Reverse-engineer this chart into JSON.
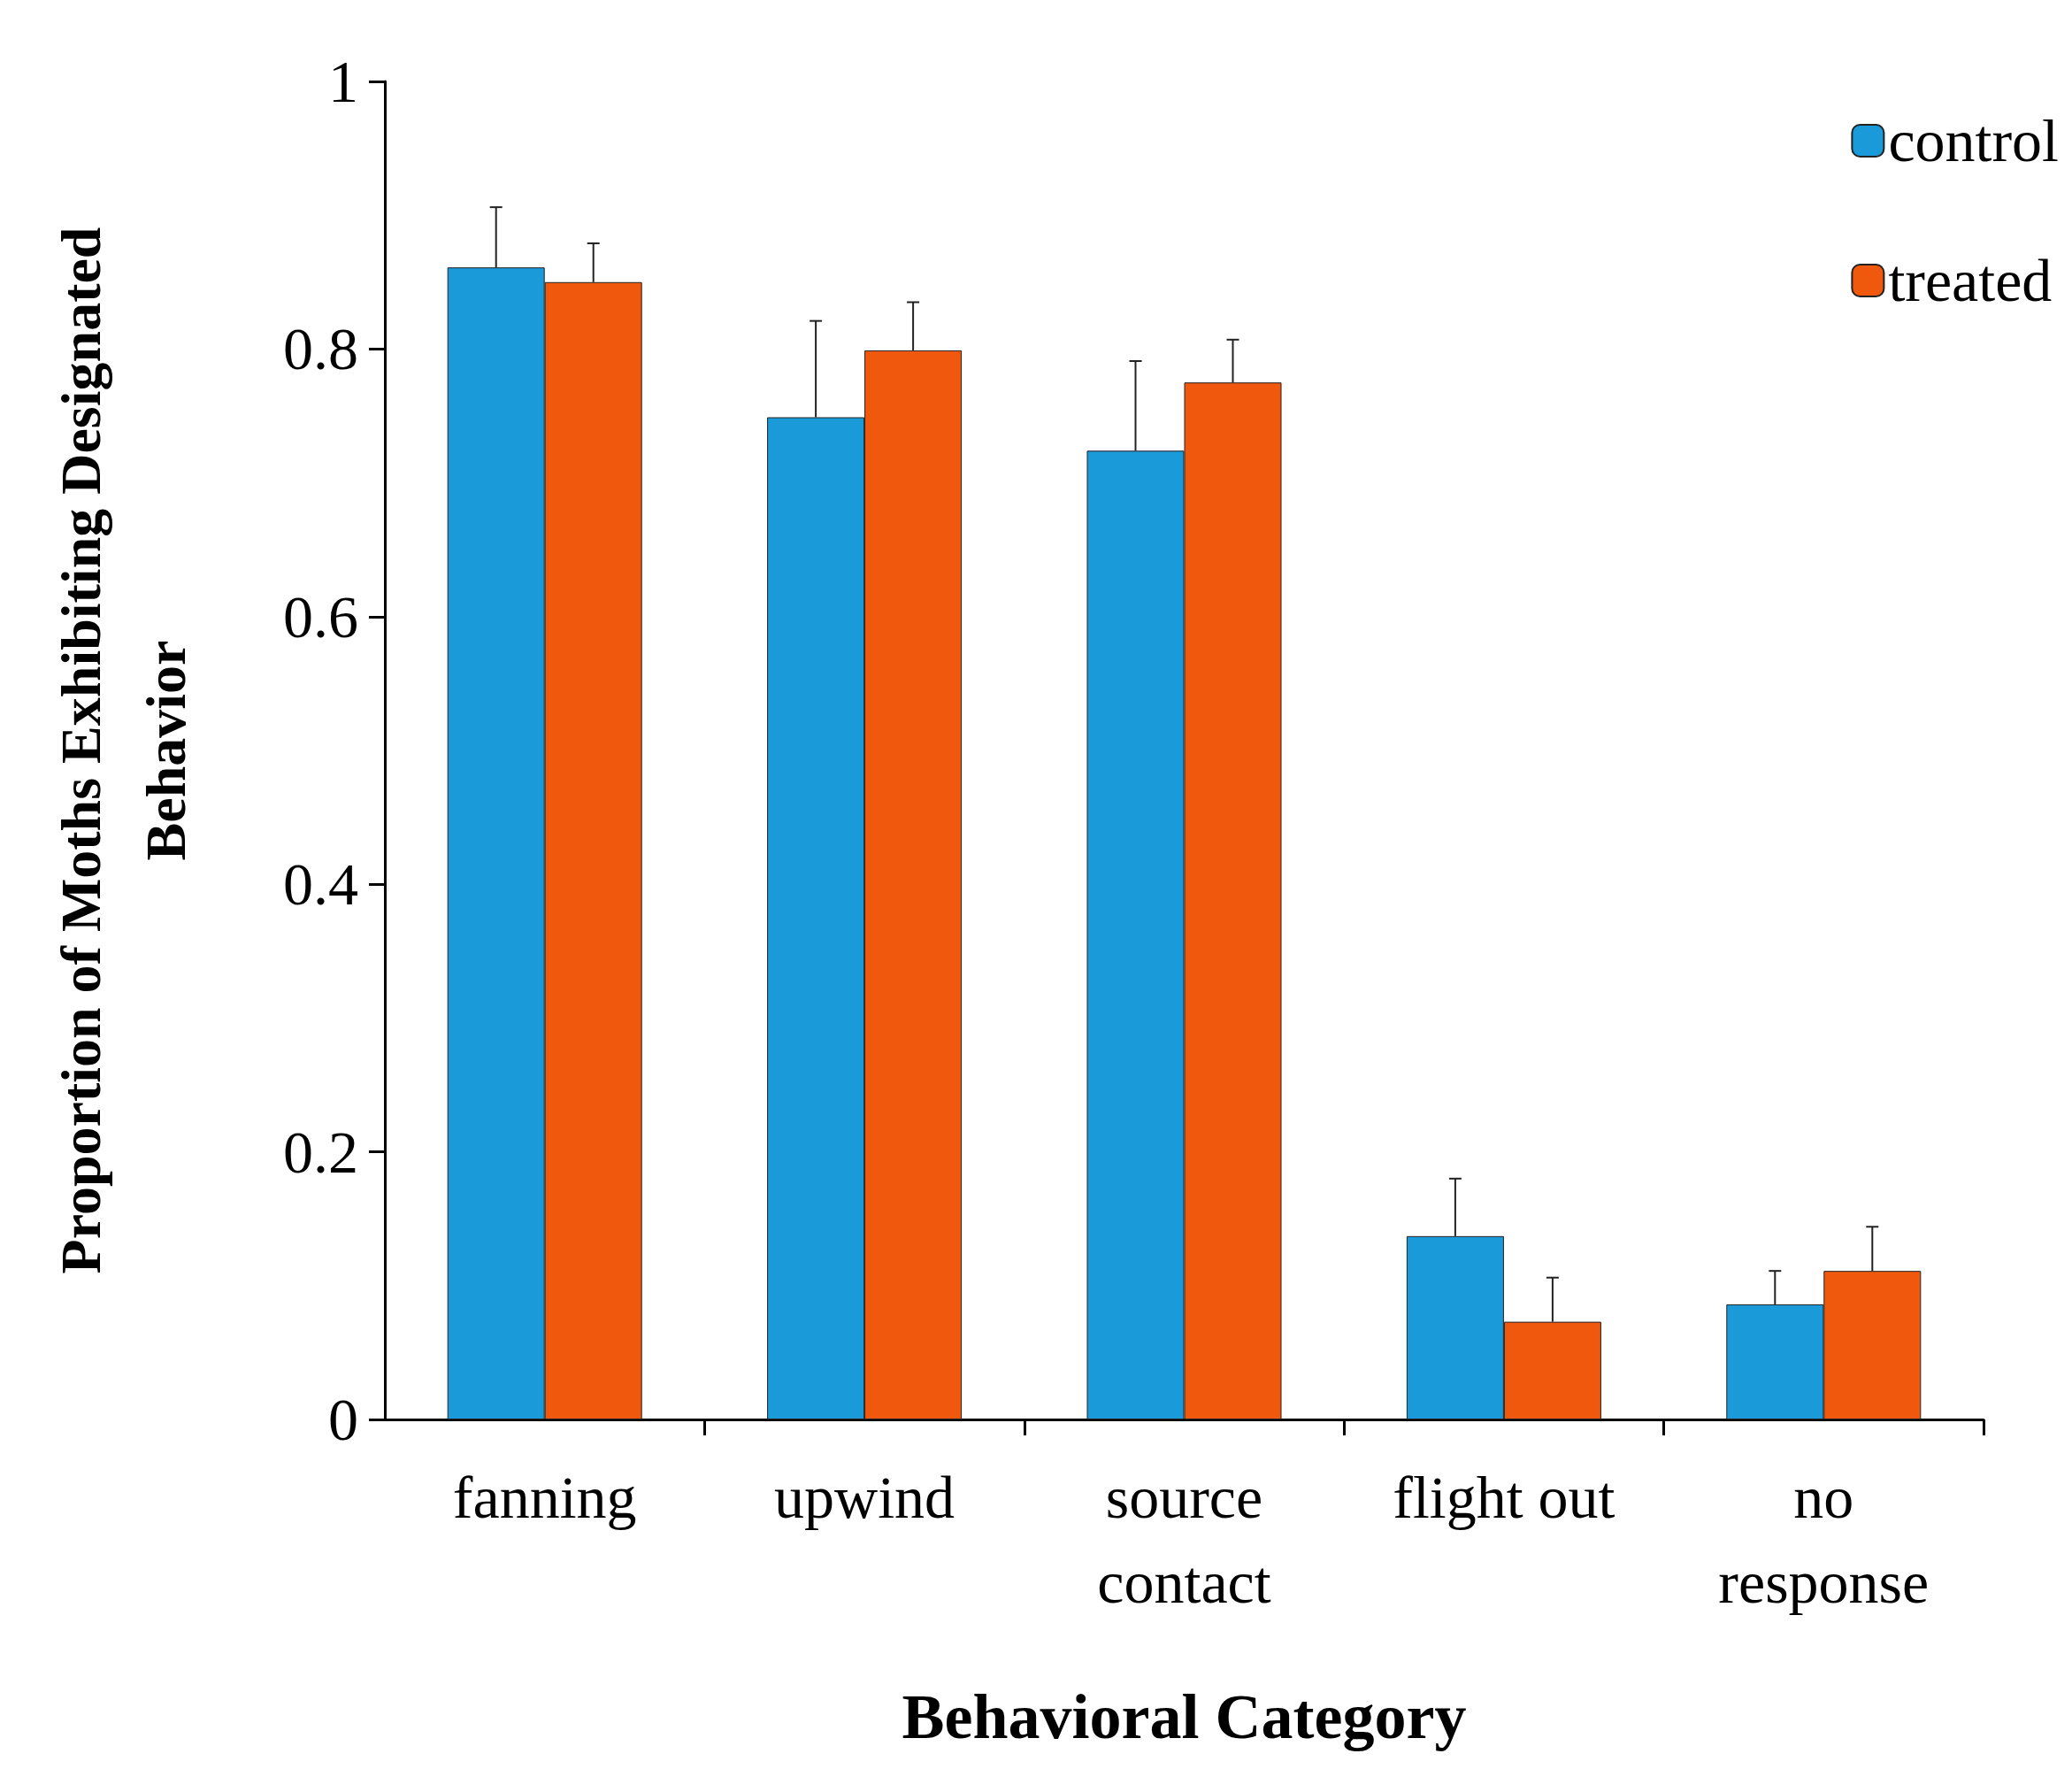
{
  "chart_data": {
    "type": "bar",
    "xlabel": "Behavioral Category",
    "ylabel": "Proportion of Moths Exhibiting Designated\nBehavior",
    "categories": [
      "fanning",
      "upwind",
      "source\ncontact",
      "flight out",
      "no\nresponse"
    ],
    "series": [
      {
        "name": "control",
        "color": "#1a9ad8",
        "values": [
          0.861,
          0.749,
          0.724,
          0.137,
          0.086
        ],
        "errors": [
          [
            0.861,
            0.906
          ],
          [
            0.749,
            0.821
          ],
          [
            0.724,
            0.791
          ],
          [
            0.137,
            0.18
          ],
          [
            0.086,
            0.111
          ]
        ]
      },
      {
        "name": "treated",
        "color": "#f0580e",
        "values": [
          0.85,
          0.799,
          0.775,
          0.073,
          0.111
        ],
        "errors": [
          [
            0.85,
            0.879
          ],
          [
            0.799,
            0.835
          ],
          [
            0.775,
            0.807
          ],
          [
            0.073,
            0.106
          ],
          [
            0.111,
            0.144
          ]
        ]
      }
    ],
    "ylim": [
      0,
      1
    ],
    "yticks": [
      0,
      0.2,
      0.4,
      0.6,
      0.8,
      1
    ],
    "grid": false,
    "legend": "top right"
  }
}
